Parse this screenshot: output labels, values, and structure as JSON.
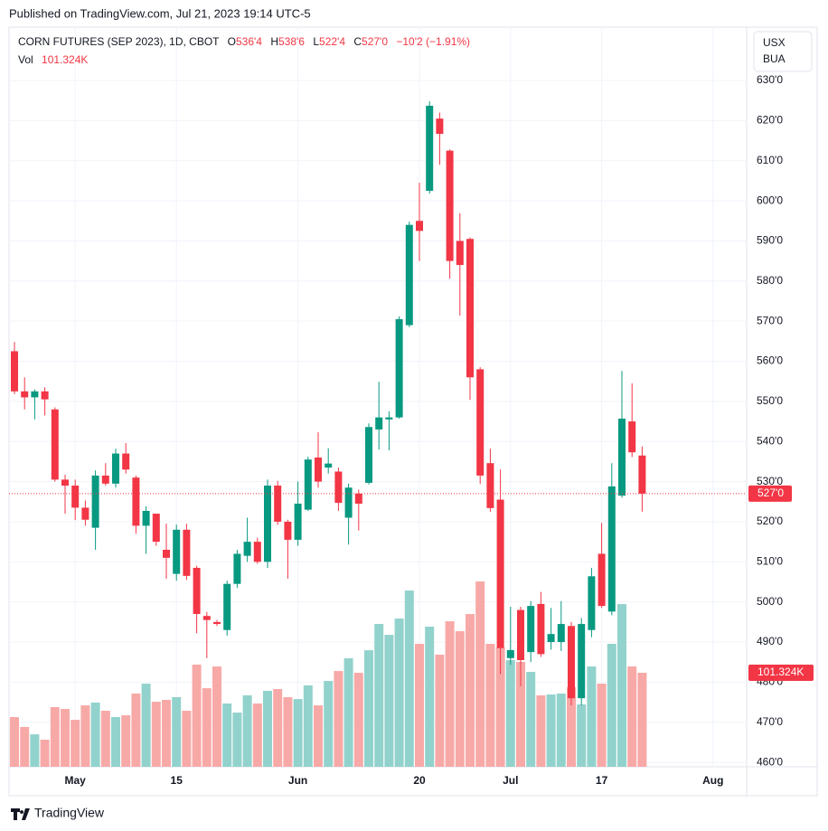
{
  "header": {
    "published": "Published on TradingView.com, Jul 21, 2023 19:14 UTC-5"
  },
  "footer": {
    "brand": "TradingView"
  },
  "chart_data": {
    "type": "candlestick",
    "title": "CORN FUTURES (SEP 2023), 1D, CBOT",
    "legend": {
      "o_key": "O",
      "o": "536'4",
      "h_key": "H",
      "h": "538'6",
      "l_key": "L",
      "l": "522'4",
      "c_key": "C",
      "c": "527'0",
      "change": "−10'2 (−1.91%)"
    },
    "unit_label": [
      "USX",
      "BUA"
    ],
    "categories": [
      null,
      null,
      null,
      null,
      null,
      null,
      "May",
      null,
      null,
      null,
      null,
      null,
      null,
      null,
      null,
      null,
      "15",
      null,
      null,
      null,
      null,
      null,
      null,
      null,
      null,
      null,
      null,
      null,
      "Jun",
      null,
      null,
      null,
      null,
      null,
      null,
      null,
      null,
      null,
      null,
      null,
      "20",
      null,
      null,
      null,
      null,
      null,
      null,
      null,
      null,
      "Jul",
      null,
      null,
      null,
      null,
      null,
      null,
      null,
      null,
      "17",
      null,
      null,
      null,
      null,
      null,
      null,
      null,
      null,
      null,
      null,
      "Aug"
    ],
    "series": [
      {
        "name": "CORN FUTURES (SEP 2023)",
        "up_color": "#089981",
        "down_color": "#f23645",
        "open": [
          562.5,
          552.5,
          551,
          552.5,
          548,
          530.5,
          529,
          523.5,
          518.5,
          531.5,
          529.5,
          537,
          531,
          519,
          522,
          513,
          507,
          518,
          508.5,
          496.5,
          495,
          493,
          504.5,
          511.5,
          515,
          510,
          529,
          520,
          515.5,
          523,
          536,
          533.5,
          532.5,
          521,
          527,
          529.7,
          543,
          545.5,
          546,
          569,
          595,
          602.5,
          620.5,
          612.5,
          590,
          590.5,
          558,
          534.6,
          525.5,
          486,
          498,
          487.5,
          499.5,
          490,
          490,
          494,
          476,
          493,
          512,
          497.6,
          526.5,
          545,
          536.5,
          null,
          null,
          null,
          null,
          null,
          null,
          null
        ],
        "high": [
          564.8,
          556,
          553,
          553.5,
          548.5,
          531.7,
          530.5,
          525.3,
          532.8,
          534.6,
          538.2,
          539.6,
          531.5,
          523.8,
          521,
          519.5,
          519.3,
          519.5,
          509,
          497.5,
          495.5,
          505.3,
          513,
          521,
          516,
          530.5,
          530.2,
          520.5,
          530,
          536.2,
          542.3,
          538.3,
          533.5,
          529.5,
          528,
          544.5,
          554.9,
          547.5,
          571.2,
          594.8,
          604.5,
          624.8,
          622,
          612.8,
          596.9,
          590.9,
          558.5,
          538.2,
          533,
          498.8,
          498.8,
          500.2,
          502.5,
          498.5,
          500.2,
          495,
          496,
          508.5,
          519.7,
          534.6,
          557.6,
          554.5,
          538.75,
          null,
          null,
          null,
          null,
          null,
          null,
          null
        ],
        "low": [
          551.8,
          548,
          545.5,
          546.5,
          530,
          522,
          520.4,
          519,
          513,
          529,
          528.5,
          532,
          517,
          512,
          514,
          505.8,
          505.3,
          505.5,
          492.2,
          486,
          494,
          491.6,
          503.5,
          510,
          509.5,
          508.5,
          519.2,
          505.8,
          514,
          522.7,
          528.5,
          532,
          522.7,
          514.3,
          517.8,
          529.3,
          538,
          537.8,
          545.7,
          568.5,
          585,
          601.8,
          609,
          580.6,
          571.4,
          550.4,
          529.4,
          522.5,
          482,
          484.3,
          479,
          485,
          486.3,
          488.1,
          487.8,
          474.2,
          474.2,
          491.2,
          498.5,
          496.7,
          526,
          536.1,
          522.5,
          null,
          null,
          null,
          null,
          null,
          null,
          null
        ],
        "close": [
          552.5,
          551,
          552.5,
          550.5,
          530.5,
          529,
          523.5,
          520.5,
          531.5,
          529.5,
          537,
          533,
          519,
          522.7,
          515,
          511,
          518,
          506.5,
          497,
          495.5,
          494.5,
          504.5,
          512,
          515,
          510,
          529,
          520,
          515.5,
          524.5,
          535.5,
          530,
          534.5,
          524.7,
          528.5,
          524.5,
          543.6,
          546,
          546,
          570.5,
          594,
          592.5,
          623.7,
          616.7,
          585,
          584,
          556,
          531.5,
          523.4,
          488.5,
          488,
          485.5,
          499,
          487,
          492,
          494.5,
          476,
          494.5,
          506.4,
          499,
          528.8,
          545.7,
          537.3,
          527,
          null,
          null,
          null,
          null,
          null,
          null,
          null
        ],
        "last_price_label": "527'0"
      }
    ],
    "volume": {
      "name": "Vol",
      "up_color": "#92d2cc",
      "down_color": "#f7a9a7",
      "values": [
        53.6,
        42.9,
        35,
        29.2,
        64.3,
        62.3,
        50.6,
        66.2,
        69.2,
        60.4,
        53.6,
        55.5,
        78.9,
        89.6,
        70.1,
        72.1,
        75,
        60.4,
        110.1,
        84.7,
        108.1,
        68.2,
        58.4,
        77,
        68.2,
        81.8,
        83.8,
        75,
        73,
        87.7,
        66.2,
        92.5,
        103.2,
        116.9,
        101.3,
        125.6,
        153.9,
        142.2,
        159.7,
        189.9,
        132.5,
        151,
        120.8,
        156.8,
        146.1,
        164.6,
        199.7,
        132.5,
        128.6,
        114.9,
        113,
        102.3,
        77,
        77.9,
        78.9,
        85.7,
        67.2,
        108.1,
        89.6,
        132.5,
        175.3,
        108.1,
        101.324,
        null,
        null,
        null,
        null,
        null,
        null,
        null
      ],
      "last_label": "101.324K",
      "vlim": [
        0,
        797
      ]
    },
    "ylim": [
      458.9,
      643.3
    ],
    "yticks": [
      {
        "value": 460,
        "label": "460'0"
      },
      {
        "value": 470,
        "label": "470'0"
      },
      {
        "value": 480,
        "label": "480'0"
      },
      {
        "value": 490,
        "label": "490'0"
      },
      {
        "value": 500,
        "label": "500'0"
      },
      {
        "value": 510,
        "label": "510'0"
      },
      {
        "value": 520,
        "label": "520'0"
      },
      {
        "value": 530,
        "label": "530'0"
      },
      {
        "value": 540,
        "label": "540'0"
      },
      {
        "value": 550,
        "label": "550'0"
      },
      {
        "value": 560,
        "label": "560'0"
      },
      {
        "value": 570,
        "label": "570'0"
      },
      {
        "value": 580,
        "label": "580'0"
      },
      {
        "value": 590,
        "label": "590'0"
      },
      {
        "value": 600,
        "label": "600'0"
      },
      {
        "value": 610,
        "label": "610'0"
      },
      {
        "value": 620,
        "label": "620'0"
      },
      {
        "value": 630,
        "label": "630'0"
      }
    ],
    "grid": true
  }
}
